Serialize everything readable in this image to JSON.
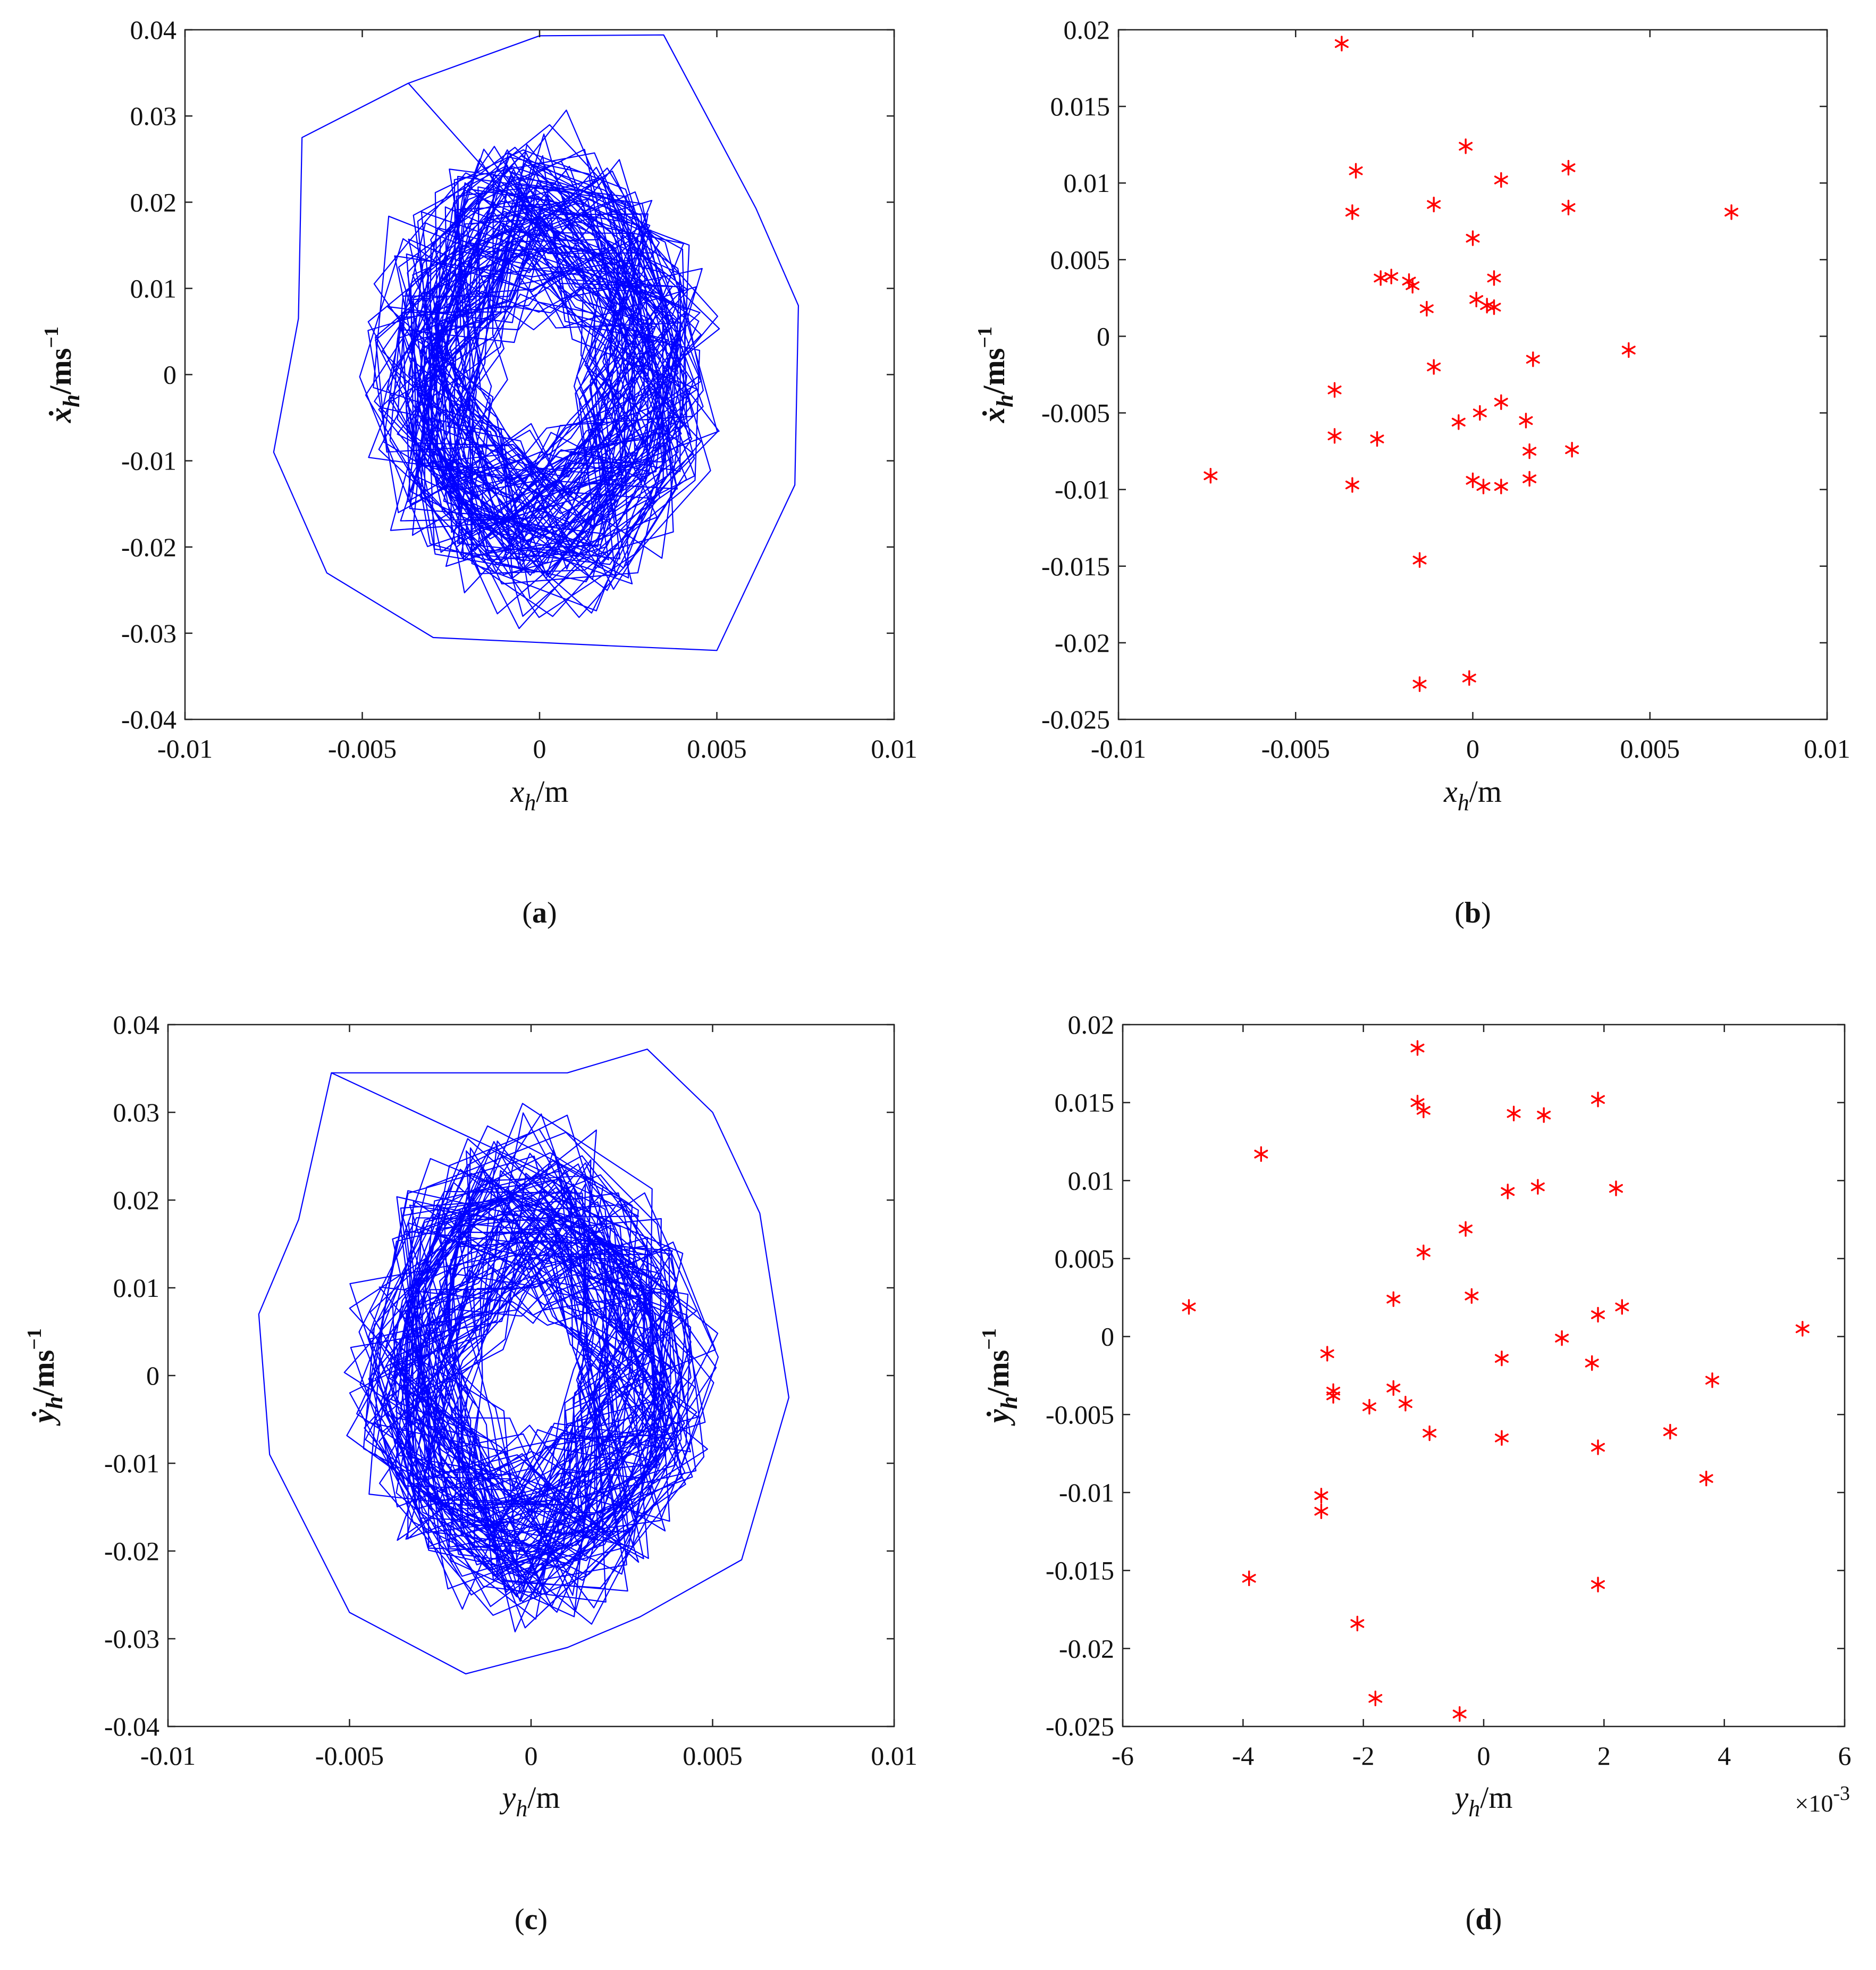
{
  "chart_data": [
    {
      "id": "a",
      "type": "line",
      "panel_label": "a",
      "xlabel": "x",
      "xlabel_sub": "h",
      "xlabel_unit": "/m",
      "ylabel": "ẋ",
      "ylabel_sub": "h",
      "ylabel_unit": "/ms",
      "ylabel_sup": "−1",
      "xlim": [
        -0.01,
        0.01
      ],
      "ylim": [
        -0.04,
        0.04
      ],
      "xticks": [
        -0.01,
        -0.005,
        0,
        0.005,
        0.01
      ],
      "xtick_labels": [
        "-0.01",
        "-0.005",
        "0",
        "0.005",
        "0.01"
      ],
      "yticks": [
        -0.04,
        -0.03,
        -0.02,
        -0.01,
        0,
        0.01,
        0.02,
        0.03,
        0.04
      ],
      "ytick_labels": [
        "-0.04",
        "-0.03",
        "-0.02",
        "-0.01",
        "0",
        "0.01",
        "0.02",
        "0.03",
        "0.04"
      ],
      "series": [
        {
          "color": "#0000ff",
          "trajectory": "dense chaotic phase-space orbit (several hundred samples) centred on the origin",
          "x_extent": [
            -0.0075,
            0.0073
          ],
          "y_extent": [
            -0.032,
            0.0395
          ],
          "outer_envelope": [
            [
              -0.0037,
              0.0338
            ],
            [
              0.0,
              0.0393
            ],
            [
              0.0035,
              0.0394
            ],
            [
              0.0061,
              0.0193
            ],
            [
              0.0073,
              0.008
            ],
            [
              0.0072,
              -0.0128
            ],
            [
              0.005,
              -0.032
            ],
            [
              0.0022,
              -0.0315
            ],
            [
              -0.003,
              -0.0305
            ],
            [
              -0.006,
              -0.023
            ],
            [
              -0.0075,
              -0.009
            ],
            [
              -0.0068,
              0.0065
            ],
            [
              -0.0067,
              0.0275
            ]
          ],
          "core_rx": 0.004,
          "core_ry": 0.023
        }
      ]
    },
    {
      "id": "b",
      "type": "scatter",
      "panel_label": "b",
      "xlabel": "x",
      "xlabel_sub": "h",
      "xlabel_unit": "/m",
      "ylabel": "ẋ",
      "ylabel_sub": "h",
      "ylabel_unit": "/ms",
      "ylabel_sup": "−1",
      "xlim": [
        -0.01,
        0.01
      ],
      "ylim": [
        -0.025,
        0.02
      ],
      "xticks": [
        -0.01,
        -0.005,
        0,
        0.005,
        0.01
      ],
      "xtick_labels": [
        "-0.01",
        "-0.005",
        "0",
        "0.005",
        "0.01"
      ],
      "yticks": [
        -0.025,
        -0.02,
        -0.015,
        -0.01,
        -0.005,
        0,
        0.005,
        0.01,
        0.015,
        0.02
      ],
      "ytick_labels": [
        "-0.025",
        "-0.02",
        "-0.015",
        "-0.01",
        "-0.005",
        "0",
        "0.005",
        "0.01",
        "0.015",
        "0.02"
      ],
      "series": [
        {
          "color": "#ff0000",
          "marker": "asterisk",
          "points": [
            [
              -0.0037,
              0.0191
            ],
            [
              -0.0002,
              0.0124
            ],
            [
              -0.0033,
              0.0108
            ],
            [
              0.0008,
              0.0102
            ],
            [
              0.0027,
              0.011
            ],
            [
              -0.0034,
              0.0081
            ],
            [
              -0.0011,
              0.0086
            ],
            [
              0.0027,
              0.0084
            ],
            [
              0.0073,
              0.0081
            ],
            [
              0.0,
              0.0064
            ],
            [
              -0.0026,
              0.0038
            ],
            [
              -0.0023,
              0.0039
            ],
            [
              -0.0018,
              0.0036
            ],
            [
              -0.0017,
              0.0033
            ],
            [
              0.0006,
              0.0038
            ],
            [
              0.0001,
              0.0024
            ],
            [
              0.0004,
              0.002
            ],
            [
              0.0006,
              0.0019
            ],
            [
              -0.0013,
              0.0018
            ],
            [
              0.0044,
              -0.0009
            ],
            [
              -0.0011,
              -0.002
            ],
            [
              0.0017,
              -0.0015
            ],
            [
              -0.0039,
              -0.0035
            ],
            [
              0.0008,
              -0.0043
            ],
            [
              0.0002,
              -0.005
            ],
            [
              -0.0004,
              -0.0056
            ],
            [
              0.0015,
              -0.0055
            ],
            [
              -0.0039,
              -0.0065
            ],
            [
              -0.0027,
              -0.0067
            ],
            [
              0.0016,
              -0.0075
            ],
            [
              0.0028,
              -0.0074
            ],
            [
              -0.0074,
              -0.0091
            ],
            [
              -0.0034,
              -0.0097
            ],
            [
              0.0,
              -0.0094
            ],
            [
              0.0003,
              -0.0098
            ],
            [
              0.0008,
              -0.0098
            ],
            [
              0.0016,
              -0.0093
            ],
            [
              -0.0015,
              -0.0146
            ],
            [
              -0.0015,
              -0.0227
            ],
            [
              -0.0001,
              -0.0223
            ]
          ]
        }
      ]
    },
    {
      "id": "c",
      "type": "line",
      "panel_label": "c",
      "xlabel": "y",
      "xlabel_sub": "h",
      "xlabel_unit": "/m",
      "ylabel": "ẏ",
      "ylabel_sub": "h",
      "ylabel_unit": "/ms",
      "ylabel_sup": "−1",
      "xlim": [
        -0.01,
        0.01
      ],
      "ylim": [
        -0.04,
        0.04
      ],
      "xticks": [
        -0.01,
        -0.005,
        0,
        0.005,
        0.01
      ],
      "xtick_labels": [
        "-0.01",
        "-0.005",
        "0",
        "0.005",
        "0.01"
      ],
      "yticks": [
        -0.04,
        -0.03,
        -0.02,
        -0.01,
        0,
        0.01,
        0.02,
        0.03,
        0.04
      ],
      "ytick_labels": [
        "-0.04",
        "-0.03",
        "-0.02",
        "-0.01",
        "0",
        "0.01",
        "0.02",
        "0.03",
        "0.04"
      ],
      "series": [
        {
          "color": "#0000ff",
          "trajectory": "dense chaotic phase-space orbit (several hundred samples) centred on the origin",
          "x_extent": [
            -0.0075,
            0.0071
          ],
          "y_extent": [
            -0.034,
            0.037
          ],
          "outer_envelope": [
            [
              -0.0055,
              0.0345
            ],
            [
              0.001,
              0.0345
            ],
            [
              0.0032,
              0.0372
            ],
            [
              0.005,
              0.03
            ],
            [
              0.0063,
              0.0185
            ],
            [
              0.0071,
              -0.0025
            ],
            [
              0.0058,
              -0.021
            ],
            [
              0.003,
              -0.0275
            ],
            [
              0.001,
              -0.031
            ],
            [
              -0.0018,
              -0.034
            ],
            [
              -0.005,
              -0.027
            ],
            [
              -0.0072,
              -0.009
            ],
            [
              -0.0075,
              0.007
            ],
            [
              -0.0064,
              0.0178
            ]
          ],
          "core_rx": 0.004,
          "core_ry": 0.023
        }
      ]
    },
    {
      "id": "d",
      "type": "scatter",
      "panel_label": "d",
      "xlabel": "y",
      "xlabel_sub": "h",
      "xlabel_unit": "/m",
      "ylabel": "ẏ",
      "ylabel_sub": "h",
      "ylabel_unit": "/ms",
      "ylabel_sup": "−1",
      "x_multiplier": "×10",
      "x_multiplier_exp": "-3",
      "xlim": [
        -6,
        6
      ],
      "ylim": [
        -0.025,
        0.02
      ],
      "xticks": [
        -6,
        -4,
        -2,
        0,
        2,
        4,
        6
      ],
      "xtick_labels": [
        "-6",
        "-4",
        "-2",
        "0",
        "2",
        "4",
        "6"
      ],
      "yticks": [
        -0.025,
        -0.02,
        -0.015,
        -0.01,
        -0.005,
        0,
        0.005,
        0.01,
        0.015,
        0.02
      ],
      "ytick_labels": [
        "-0.025",
        "-0.02",
        "-0.015",
        "-0.01",
        "-0.005",
        "0",
        "0.005",
        "0.01",
        "0.015",
        "0.02"
      ],
      "series": [
        {
          "color": "#ff0000",
          "marker": "asterisk",
          "points": [
            [
              -1.1,
              0.0185
            ],
            [
              -1.1,
              0.015
            ],
            [
              -1.0,
              0.0145
            ],
            [
              0.5,
              0.0143
            ],
            [
              1.0,
              0.0142
            ],
            [
              1.9,
              0.0152
            ],
            [
              -3.7,
              0.0117
            ],
            [
              0.4,
              0.0093
            ],
            [
              0.9,
              0.0096
            ],
            [
              2.2,
              0.0095
            ],
            [
              -0.3,
              0.0069
            ],
            [
              -1.0,
              0.0054
            ],
            [
              -0.2,
              0.0026
            ],
            [
              -1.5,
              0.0024
            ],
            [
              -4.9,
              0.0019
            ],
            [
              1.9,
              0.0014
            ],
            [
              2.3,
              0.0019
            ],
            [
              1.3,
              -0.0001
            ],
            [
              5.3,
              0.0005
            ],
            [
              -2.6,
              -0.0011
            ],
            [
              0.3,
              -0.0014
            ],
            [
              1.8,
              -0.0017
            ],
            [
              -2.5,
              -0.0035
            ],
            [
              -2.5,
              -0.0038
            ],
            [
              -1.5,
              -0.0033
            ],
            [
              -1.3,
              -0.0043
            ],
            [
              -1.9,
              -0.0045
            ],
            [
              3.8,
              -0.0028
            ],
            [
              -0.9,
              -0.0062
            ],
            [
              0.3,
              -0.0065
            ],
            [
              3.1,
              -0.0061
            ],
            [
              1.9,
              -0.0071
            ],
            [
              3.7,
              -0.0091
            ],
            [
              -2.7,
              -0.0102
            ],
            [
              -2.7,
              -0.0112
            ],
            [
              -3.9,
              -0.0155
            ],
            [
              1.9,
              -0.0159
            ],
            [
              -2.1,
              -0.0184
            ],
            [
              -1.8,
              -0.0232
            ],
            [
              -0.4,
              -0.0242
            ]
          ]
        }
      ]
    }
  ]
}
